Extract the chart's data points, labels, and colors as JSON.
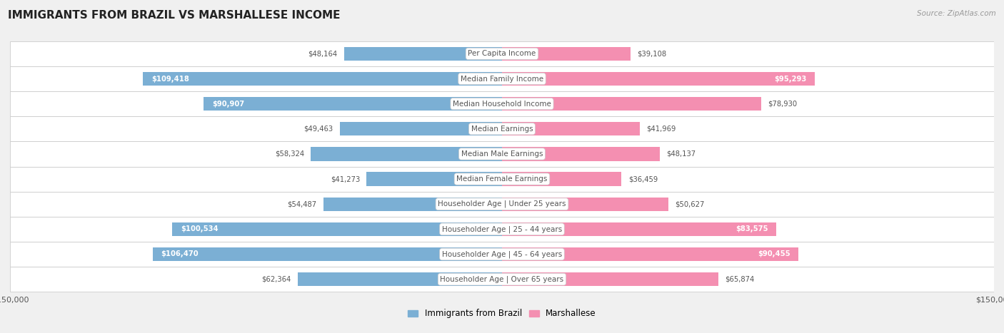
{
  "title": "IMMIGRANTS FROM BRAZIL VS MARSHALLESE INCOME",
  "source": "Source: ZipAtlas.com",
  "categories": [
    "Per Capita Income",
    "Median Family Income",
    "Median Household Income",
    "Median Earnings",
    "Median Male Earnings",
    "Median Female Earnings",
    "Householder Age | Under 25 years",
    "Householder Age | 25 - 44 years",
    "Householder Age | 45 - 64 years",
    "Householder Age | Over 65 years"
  ],
  "brazil_values": [
    48164,
    109418,
    90907,
    49463,
    58324,
    41273,
    54487,
    100534,
    106470,
    62364
  ],
  "marshallese_values": [
    39108,
    95293,
    78930,
    41969,
    48137,
    36459,
    50627,
    83575,
    90455,
    65874
  ],
  "brazil_color": "#7bafd4",
  "marshallese_color": "#f48fb1",
  "brazil_label": "Immigrants from Brazil",
  "marshallese_label": "Marshallese",
  "axis_max": 150000,
  "background_color": "#f0f0f0",
  "row_color_light": "#ffffff",
  "row_color_dark": "#e8e8e8"
}
